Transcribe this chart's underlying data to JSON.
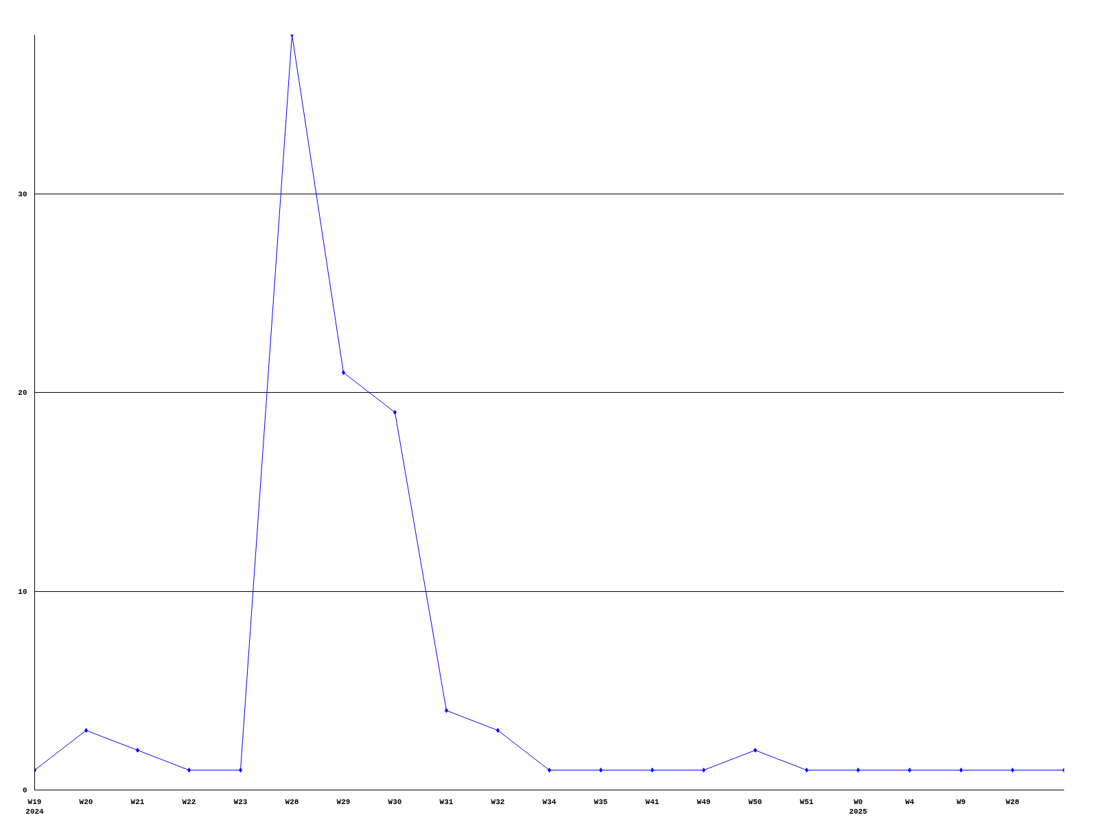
{
  "chart_data": {
    "type": "line",
    "categories": [
      "W19\n2024",
      "W20",
      "W21",
      "W22",
      "W23",
      "W28",
      "W29",
      "W30",
      "W31",
      "W32",
      "W34",
      "W35",
      "W41",
      "W49",
      "W50",
      "W51",
      "W0\n2025",
      "W4",
      "W9",
      "W28",
      null
    ],
    "series": [
      {
        "color": "#0000ff",
        "values": [
          1,
          3,
          2,
          1,
          1,
          38,
          21,
          19,
          4,
          3,
          1,
          1,
          1,
          1,
          2,
          1,
          1,
          1,
          1,
          1,
          1
        ]
      }
    ],
    "ylim": [
      0,
      38
    ],
    "yticks": [
      0,
      10,
      20,
      30
    ],
    "grid": "y",
    "marker": "diamond",
    "line_style": "solid"
  }
}
